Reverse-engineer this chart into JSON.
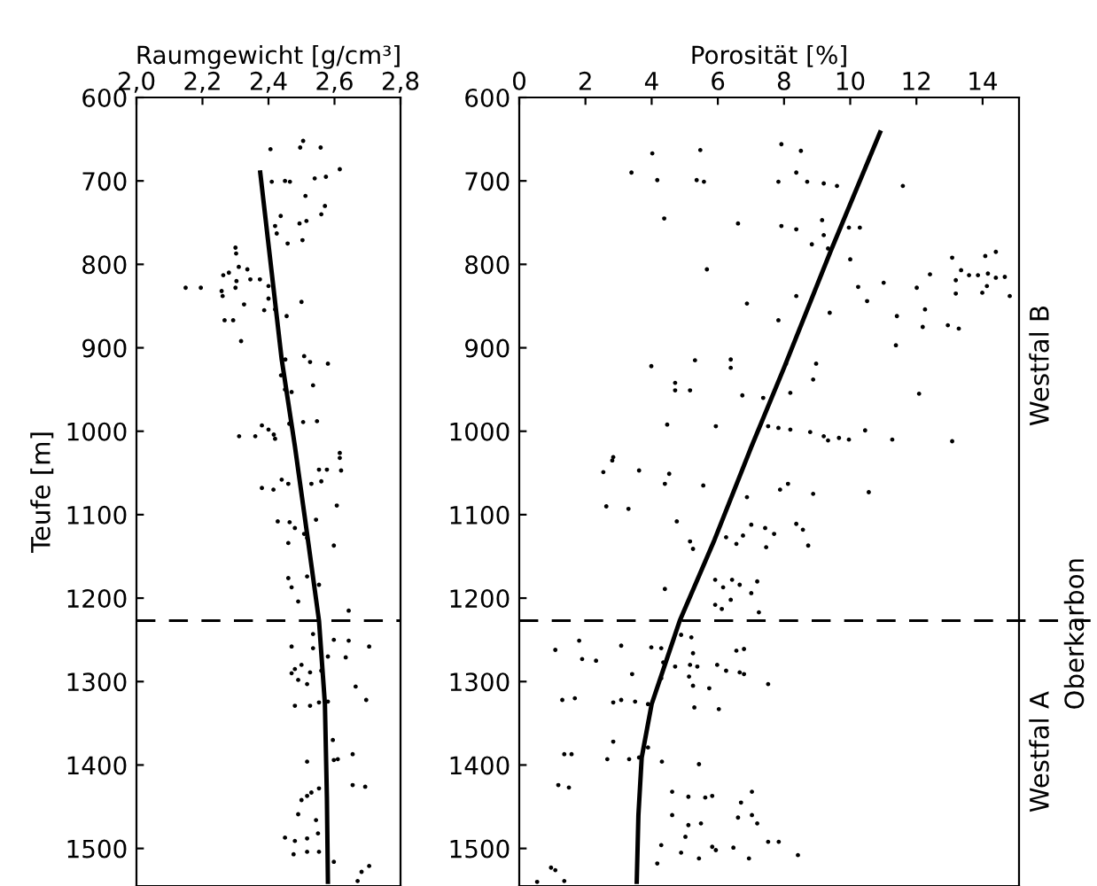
{
  "chart_data": [
    {
      "type": "scatter",
      "xlabel": "Raumgewicht [g/cm³]",
      "ylabel": "Teufe [m]",
      "xlim": [
        2.0,
        2.8
      ],
      "xticks": [
        {
          "value": 2.0,
          "label": "2,0"
        },
        {
          "value": 2.2,
          "label": "2,2"
        },
        {
          "value": 2.4,
          "label": "2,4"
        },
        {
          "value": 2.6,
          "label": "2,6"
        },
        {
          "value": 2.8,
          "label": "2,8"
        }
      ],
      "ylim": [
        1545,
        600
      ],
      "yticks": [
        600,
        700,
        800,
        900,
        1000,
        1100,
        1200,
        1300,
        1400,
        1500
      ],
      "grid": false,
      "marker": "circle",
      "ref_lines": [
        {
          "axis": "y",
          "value": 1227,
          "line_style": "dashed",
          "color": "#000000"
        }
      ],
      "series": [
        {
          "color": "#000000",
          "x": [
            2.406,
            2.505,
            2.558,
            2.496,
            2.616,
            2.41,
            2.45,
            2.465,
            2.54,
            2.574,
            2.512,
            2.571,
            2.56,
            2.437,
            2.494,
            2.515,
            2.42,
            2.425,
            2.458,
            2.503,
            2.3,
            2.302,
            2.31,
            2.28,
            2.263,
            2.336,
            2.303,
            2.345,
            2.374,
            2.4,
            2.149,
            2.195,
            2.258,
            2.3,
            2.261,
            2.4,
            2.5,
            2.326,
            2.387,
            2.42,
            2.455,
            2.267,
            2.293,
            2.317,
            2.451,
            2.508,
            2.526,
            2.58,
            2.438,
            2.535,
            2.45,
            2.47,
            2.463,
            2.505,
            2.547,
            2.38,
            2.4,
            2.416,
            2.36,
            2.311,
            2.42,
            2.616,
            2.616,
            2.553,
            2.577,
            2.62,
            2.38,
            2.415,
            2.44,
            2.46,
            2.53,
            2.56,
            2.607,
            2.428,
            2.464,
            2.48,
            2.508,
            2.544,
            2.517,
            2.46,
            2.598,
            2.46,
            2.47,
            2.517,
            2.553,
            2.49,
            2.643,
            2.535,
            2.598,
            2.643,
            2.705,
            2.47,
            2.535,
            2.58,
            2.634,
            2.48,
            2.5,
            2.526,
            2.47,
            2.49,
            2.56,
            2.517,
            2.664,
            2.696,
            2.553,
            2.48,
            2.526,
            2.58,
            2.595,
            2.598,
            2.655,
            2.61,
            2.517,
            2.655,
            2.693,
            2.553,
            2.53,
            2.517,
            2.5,
            2.49,
            2.544,
            2.45,
            2.48,
            2.517,
            2.55,
            2.476,
            2.517,
            2.553,
            2.598,
            2.705,
            2.682,
            2.67
          ],
          "values": [
            662,
            652,
            660,
            660,
            686,
            701,
            700,
            701,
            697,
            695,
            718,
            730,
            740,
            742,
            751,
            748,
            754,
            763,
            775,
            771,
            780,
            787,
            803,
            810,
            813,
            806,
            820,
            818,
            818,
            826,
            828,
            828,
            832,
            828,
            838,
            841,
            845,
            848,
            855,
            854,
            862,
            867,
            867,
            892,
            914,
            910,
            917,
            919,
            933,
            945,
            950,
            953,
            991,
            989,
            988,
            993,
            998,
            1004,
            1006,
            1006,
            1009,
            1026,
            1032,
            1046,
            1046,
            1047,
            1068,
            1070,
            1058,
            1063,
            1063,
            1060,
            1089,
            1108,
            1109,
            1116,
            1123,
            1106,
            1128,
            1134,
            1137,
            1176,
            1187,
            1174,
            1184,
            1204,
            1215,
            1243,
            1250,
            1251,
            1258,
            1258,
            1260,
            1270,
            1271,
            1285,
            1280,
            1289,
            1290,
            1298,
            1287,
            1303,
            1306,
            1322,
            1325,
            1329,
            1329,
            1324,
            1370,
            1394,
            1387,
            1393,
            1396,
            1424,
            1426,
            1428,
            1433,
            1437,
            1442,
            1459,
            1466,
            1487,
            1491,
            1488,
            1482,
            1507,
            1504,
            1504,
            1516,
            1521,
            1528,
            1539
          ]
        },
        {
          "type": "line",
          "color": "#000000",
          "marker": "none",
          "line_style": "solid",
          "x": [
            2.375,
            2.44,
            2.48,
            2.517,
            2.553,
            2.571,
            2.577,
            2.58
          ],
          "values": [
            690,
            914,
            1018,
            1123,
            1227,
            1327,
            1440,
            1540
          ]
        }
      ]
    },
    {
      "type": "scatter",
      "xlabel": "Porosität [%]",
      "xlim": [
        0,
        15.1
      ],
      "xticks": [
        0,
        2,
        4,
        6,
        8,
        10,
        12,
        14
      ],
      "ylim": [
        1545,
        600
      ],
      "yticks": [
        600,
        700,
        800,
        900,
        1000,
        1100,
        1200,
        1300,
        1400,
        1500
      ],
      "grid": false,
      "marker": "circle",
      "ref_lines": [
        {
          "axis": "y",
          "value": 1227,
          "line_style": "dashed",
          "color": "#000000"
        }
      ],
      "annotations": [
        "Westfal B",
        "Westfal A",
        "Oberkarbon"
      ],
      "series": [
        {
          "color": "#000000",
          "x": [
            3.39,
            4.02,
            4.17,
            5.47,
            5.36,
            5.58,
            7.92,
            8.51,
            8.37,
            7.83,
            8.7,
            9.2,
            9.6,
            11.59,
            4.38,
            6.61,
            7.92,
            8.37,
            9.15,
            9.2,
            8.84,
            9.33,
            9.96,
            10.29,
            10.0,
            5.67,
            11.01,
            10.24,
            10.51,
            8.37,
            6.88,
            7.83,
            9.38,
            11.41,
            11.38,
            12.01,
            12.41,
            12.26,
            12.19,
            12.95,
            13.28,
            13.08,
            13.19,
            13.35,
            13.59,
            13.86,
            14.16,
            14.4,
            14.67,
            13.19,
            13.99,
            14.13,
            14.08,
            14.4,
            14.82,
            3.99,
            5.31,
            6.39,
            6.39,
            4.71,
            4.71,
            5.16,
            8.06,
            8.97,
            8.88,
            6.74,
            7.37,
            8.19,
            12.08,
            4.47,
            5.94,
            7.52,
            7.83,
            8.19,
            8.79,
            9.2,
            9.33,
            9.66,
            9.96,
            10.45,
            11.27,
            13.08,
            2.84,
            2.81,
            2.54,
            3.62,
            4.4,
            4.53,
            5.56,
            2.63,
            3.3,
            6.88,
            7.88,
            8.12,
            8.88,
            10.56,
            4.76,
            5.16,
            5.25,
            6.25,
            6.56,
            6.76,
            7.01,
            7.43,
            7.7,
            7.46,
            8.37,
            8.57,
            8.73,
            4.4,
            5.92,
            6.16,
            6.43,
            6.66,
            6.39,
            7.01,
            7.19,
            5.92,
            6.12,
            7.24,
            1.81,
            1.09,
            1.9,
            2.32,
            3.08,
            3.99,
            4.29,
            4.89,
            5.2,
            4.71,
            4.35,
            5.16,
            5.25,
            5.38,
            5.13,
            5.25,
            5.74,
            5.98,
            6.25,
            6.56,
            6.79,
            6.66,
            6.79,
            7.52,
            3.41,
            4.29,
            1.3,
            1.68,
            2.84,
            3.08,
            3.5,
            3.89,
            5.29,
            6.03,
            2.84,
            2.66,
            3.32,
            3.62,
            3.89,
            4.31,
            5.43,
            1.36,
            1.58,
            1.18,
            1.5,
            4.62,
            5.11,
            5.62,
            5.83,
            7.03,
            6.7,
            4.62,
            5.11,
            5.49,
            6.61,
            7.03,
            7.19,
            5.02,
            4.29,
            4.89,
            5.43,
            5.83,
            5.94,
            6.47,
            6.94,
            7.52,
            7.84,
            8.42,
            4.17,
            0.96,
            1.09,
            0.54,
            1.36
          ],
          "values": [
            690,
            667,
            699,
            663,
            699,
            701,
            656,
            664,
            690,
            701,
            701,
            703,
            706,
            706,
            745,
            751,
            754,
            758,
            747,
            765,
            776,
            781,
            756,
            756,
            794,
            806,
            822,
            827,
            844,
            838,
            847,
            867,
            858,
            862,
            897,
            828,
            812,
            854,
            875,
            873,
            877,
            792,
            819,
            807,
            813,
            813,
            811,
            816,
            815,
            835,
            834,
            826,
            790,
            785,
            838,
            922,
            915,
            914,
            924,
            942,
            951,
            951,
            919,
            919,
            938,
            957,
            960,
            954,
            955,
            992,
            994,
            994,
            996,
            998,
            1001,
            1006,
            1011,
            1008,
            1010,
            999,
            1010,
            1012,
            1031,
            1035,
            1049,
            1047,
            1063,
            1051,
            1065,
            1090,
            1093,
            1079,
            1070,
            1063,
            1075,
            1073,
            1108,
            1132,
            1141,
            1127,
            1135,
            1125,
            1112,
            1116,
            1123,
            1139,
            1111,
            1118,
            1137,
            1189,
            1178,
            1187,
            1178,
            1184,
            1202,
            1194,
            1180,
            1208,
            1213,
            1217,
            1251,
            1262,
            1273,
            1275,
            1257,
            1259,
            1260,
            1244,
            1247,
            1282,
            1277,
            1280,
            1266,
            1282,
            1294,
            1305,
            1308,
            1280,
            1287,
            1263,
            1261,
            1289,
            1291,
            1303,
            1291,
            1296,
            1322,
            1320,
            1325,
            1322,
            1324,
            1327,
            1331,
            1333,
            1372,
            1393,
            1393,
            1391,
            1379,
            1396,
            1399,
            1387,
            1387,
            1424,
            1427,
            1432,
            1438,
            1439,
            1437,
            1432,
            1445,
            1460,
            1472,
            1470,
            1463,
            1460,
            1470,
            1486,
            1496,
            1505,
            1512,
            1498,
            1502,
            1499,
            1512,
            1492,
            1492,
            1508,
            1518,
            1523,
            1526,
            1540,
            1539
          ]
        },
        {
          "type": "line",
          "color": "#000000",
          "marker": "none",
          "line_style": "solid",
          "x": [
            10.9,
            9.4,
            8.0,
            7.0,
            5.9,
            4.85,
            4.0,
            3.7,
            3.6,
            3.55
          ],
          "values": [
            642,
            785,
            924,
            1020,
            1130,
            1227,
            1327,
            1391,
            1460,
            1540
          ]
        }
      ]
    }
  ]
}
